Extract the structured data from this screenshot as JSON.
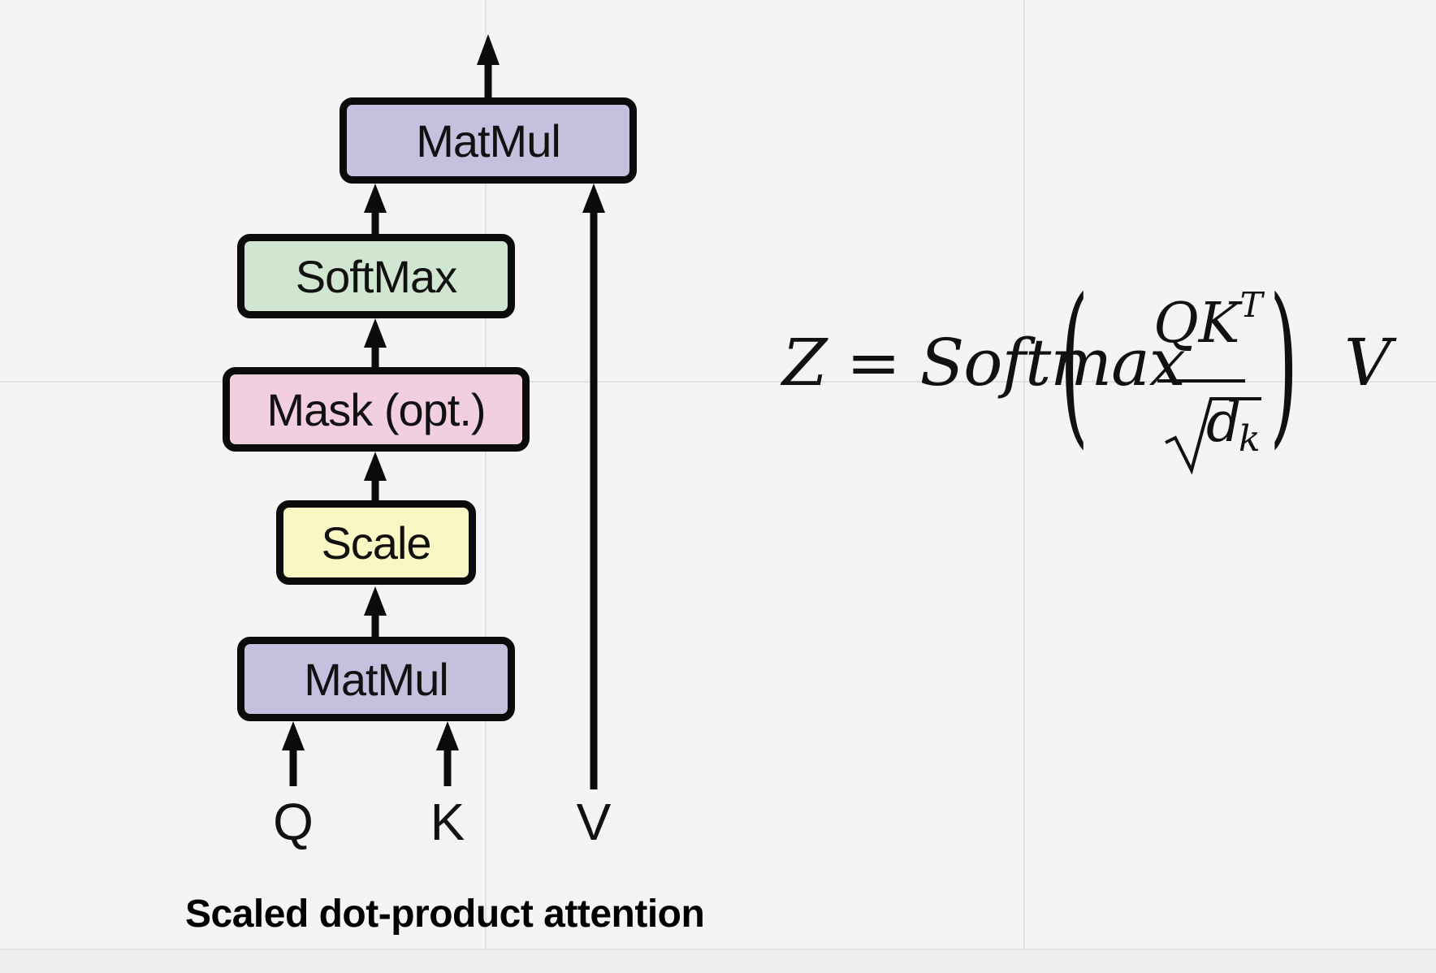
{
  "diagram": {
    "blocks": {
      "matmul_top": "MatMul",
      "softmax": "SoftMax",
      "mask": "Mask (opt.)",
      "scale": "Scale",
      "matmul_bottom": "MatMul"
    },
    "inputs": {
      "q": "Q",
      "k": "K",
      "v": "V"
    },
    "caption": "Scaled dot-product attention",
    "colors": {
      "matmul": "#c4c0de",
      "softmax": "#d1e6d0",
      "mask": "#f1cfe0",
      "scale": "#fbf7c4",
      "line": "#0b0b0b",
      "background": "#f4f4f4"
    }
  },
  "formula": {
    "lhs": "Z",
    "equals": "=",
    "function": "Softmax",
    "open_paren": "(",
    "close_paren": ")",
    "numerator": "QK",
    "numerator_superscript": "T",
    "denominator_base": "d",
    "denominator_subscript": "k",
    "rhs": "V"
  }
}
